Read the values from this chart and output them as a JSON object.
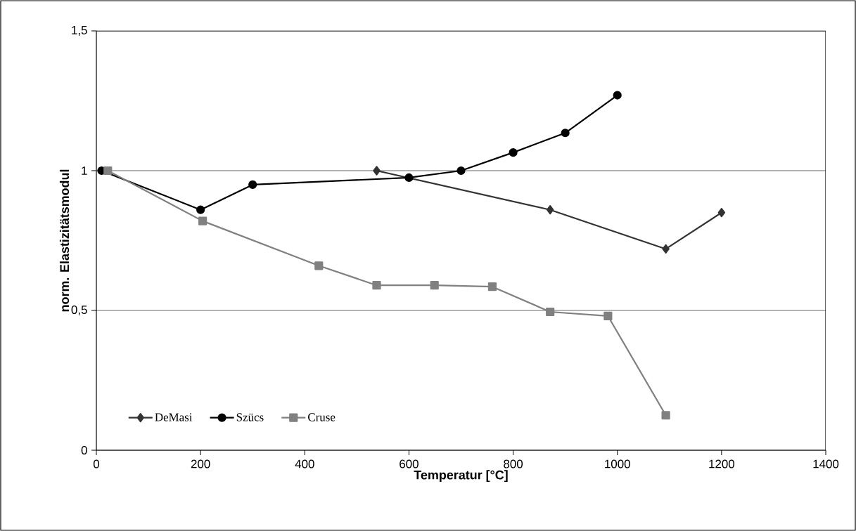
{
  "chart_data": {
    "type": "line",
    "xlabel": "Temperatur [°C]",
    "ylabel": "norm. Elastizitätsmodul",
    "xlim": [
      0,
      1400
    ],
    "xticks": [
      0,
      200,
      400,
      600,
      800,
      1000,
      1200,
      1400
    ],
    "ylim": [
      0,
      1.5
    ],
    "yticks": [
      0,
      {
        "value": 0.5,
        "label": "0,5"
      },
      1,
      {
        "value": 1.5,
        "label": "1,5"
      }
    ],
    "grid": "y",
    "legend": "bottom left",
    "line_style": "solid",
    "series": [
      {
        "name": "DeMasi",
        "color": "#333333",
        "marker": "diamond",
        "x": [
          538,
          871,
          1093,
          1200
        ],
        "values": [
          1.0,
          0.86,
          0.72,
          0.85
        ]
      },
      {
        "name": "Szücs",
        "color": "#000000",
        "marker": "circle",
        "x": [
          10,
          200,
          300,
          600,
          700,
          800,
          900,
          1000
        ],
        "values": [
          1.0,
          0.86,
          0.95,
          0.975,
          1.0,
          1.065,
          1.135,
          1.27
        ]
      },
      {
        "name": "Cruse",
        "color": "#808080",
        "marker": "square",
        "x": [
          22,
          204,
          427,
          538,
          649,
          760,
          871,
          982,
          1093
        ],
        "values": [
          1.0,
          0.82,
          0.66,
          0.59,
          0.59,
          0.585,
          0.495,
          0.48,
          0.125
        ]
      }
    ]
  }
}
